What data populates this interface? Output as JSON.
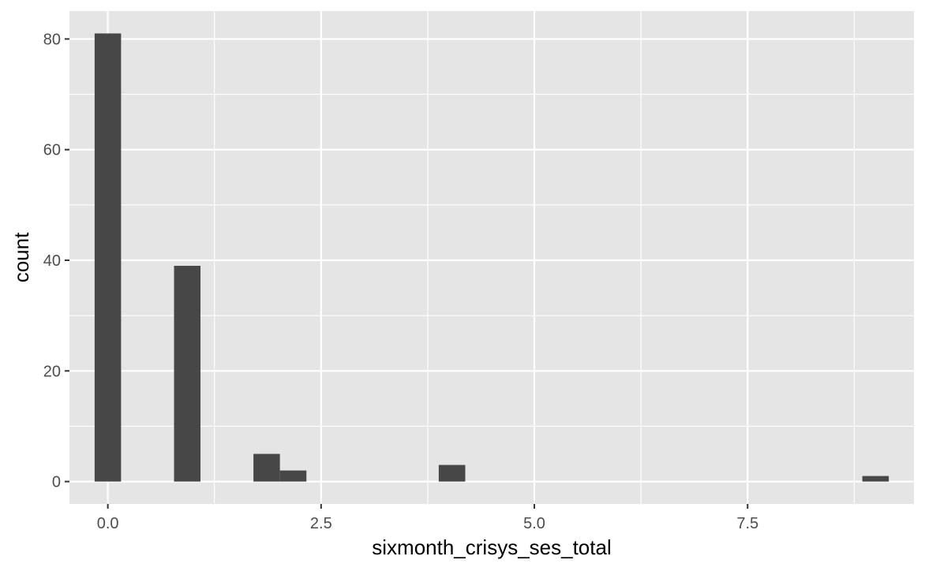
{
  "chart_data": {
    "type": "bar",
    "title": "",
    "xlabel": "sixmonth_crisys_ses_total",
    "ylabel": "count",
    "xlim": [
      -0.45,
      9.45
    ],
    "ylim": [
      -4.05,
      85.05
    ],
    "x_ticks": [
      0.0,
      2.5,
      5.0,
      7.5
    ],
    "x_tick_labels": [
      "0.0",
      "2.5",
      "5.0",
      "7.5"
    ],
    "y_ticks": [
      0,
      20,
      40,
      60,
      80
    ],
    "y_tick_labels": [
      "0",
      "20",
      "40",
      "60",
      "80"
    ],
    "bin_width": 0.31,
    "bins": [
      {
        "x_start": -0.155,
        "x_end": 0.155,
        "count": 81
      },
      {
        "x_start": 0.776,
        "x_end": 1.086,
        "count": 39
      },
      {
        "x_start": 1.707,
        "x_end": 2.017,
        "count": 5
      },
      {
        "x_start": 2.017,
        "x_end": 2.328,
        "count": 2
      },
      {
        "x_start": 3.879,
        "x_end": 4.19,
        "count": 3
      },
      {
        "x_start": 8.845,
        "x_end": 9.155,
        "count": 1
      }
    ],
    "grid": true,
    "colors": {
      "panel_background": "#e5e5e5",
      "grid_line": "#ffffff",
      "bar_fill": "#474747",
      "tick_text": "#4d4d4d",
      "axis_text": "#000000"
    }
  }
}
